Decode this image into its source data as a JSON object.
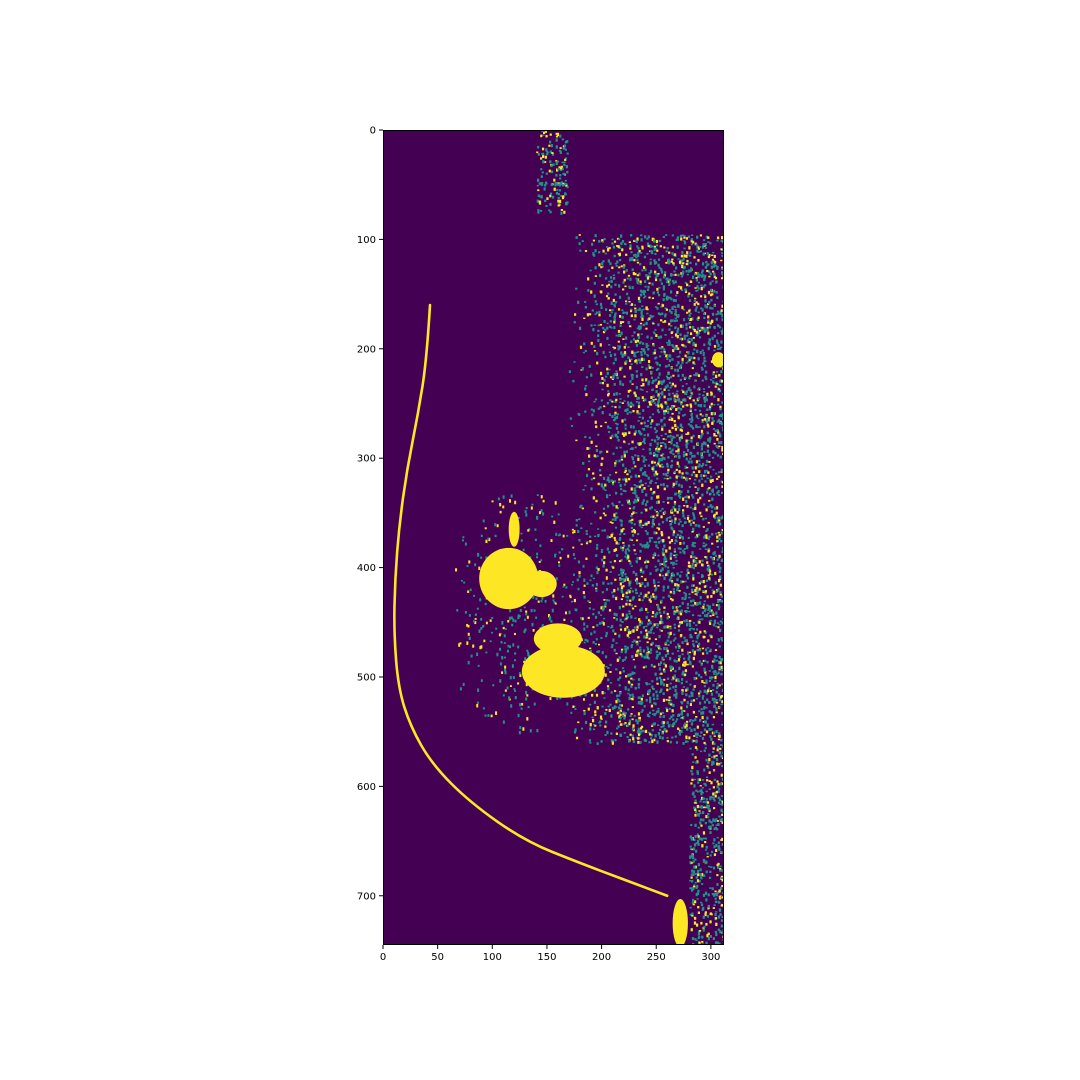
{
  "chart_data": {
    "type": "heatmap",
    "title": "",
    "xlabel": "",
    "ylabel": "",
    "image_extent": {
      "x": [
        0,
        312
      ],
      "y": [
        745,
        0
      ]
    },
    "xlim": [
      0,
      312
    ],
    "ylim": [
      745,
      0
    ],
    "x_ticks": [
      0,
      50,
      100,
      150,
      200,
      250,
      300
    ],
    "x_tick_labels": [
      "0",
      "50",
      "100",
      "150",
      "200",
      "250",
      "300"
    ],
    "y_ticks": [
      0,
      100,
      200,
      300,
      400,
      500,
      600,
      700
    ],
    "y_tick_labels": [
      "0",
      "100",
      "200",
      "300",
      "400",
      "500",
      "600",
      "700"
    ],
    "colormap": "viridis",
    "colors": {
      "low": "#440154",
      "mid": "#21918c",
      "high": "#fde725"
    },
    "value_levels": [
      0,
      0.5,
      1
    ],
    "grid": false,
    "legend": "none",
    "regions": [
      {
        "label": "bright mass",
        "value": 1,
        "shape": "ellipse",
        "center": [
          115,
          410
        ],
        "radii": [
          27,
          28
        ]
      },
      {
        "label": "mass spicule",
        "value": 1,
        "shape": "ellipse",
        "center": [
          120,
          365
        ],
        "radii": [
          5,
          16
        ]
      },
      {
        "label": "mass extension",
        "value": 1,
        "shape": "ellipse",
        "center": [
          145,
          415
        ],
        "radii": [
          14,
          12
        ]
      },
      {
        "label": "lower cluster",
        "value": 1,
        "shape": "ellipse",
        "center": [
          165,
          495
        ],
        "radii": [
          38,
          24
        ]
      },
      {
        "label": "lower cluster 2",
        "value": 1,
        "shape": "ellipse",
        "center": [
          160,
          465
        ],
        "radii": [
          22,
          14
        ]
      },
      {
        "label": "right-edge blob",
        "value": 1,
        "shape": "ellipse",
        "center": [
          307,
          210
        ],
        "radii": [
          6,
          7
        ]
      },
      {
        "label": "corner strip",
        "value": 1,
        "shape": "ellipse",
        "center": [
          272,
          725
        ],
        "radii": [
          7,
          22
        ]
      },
      {
        "label": "pectoral texture",
        "value": 0.5,
        "shape": "texture",
        "x": [
          170,
          312
        ],
        "y": [
          95,
          760
        ]
      },
      {
        "label": "top texture",
        "value": 0.5,
        "shape": "texture",
        "x": [
          140,
          168
        ],
        "y": [
          0,
          75
        ]
      }
    ],
    "skin_line": [
      [
        43,
        160
      ],
      [
        40,
        210
      ],
      [
        32,
        260
      ],
      [
        22,
        310
      ],
      [
        15,
        360
      ],
      [
        11,
        410
      ],
      [
        10,
        460
      ],
      [
        14,
        510
      ],
      [
        25,
        545
      ],
      [
        45,
        580
      ],
      [
        80,
        615
      ],
      [
        130,
        650
      ],
      [
        180,
        670
      ],
      [
        220,
        685
      ],
      [
        260,
        700
      ]
    ],
    "skin_line_value": 1
  }
}
